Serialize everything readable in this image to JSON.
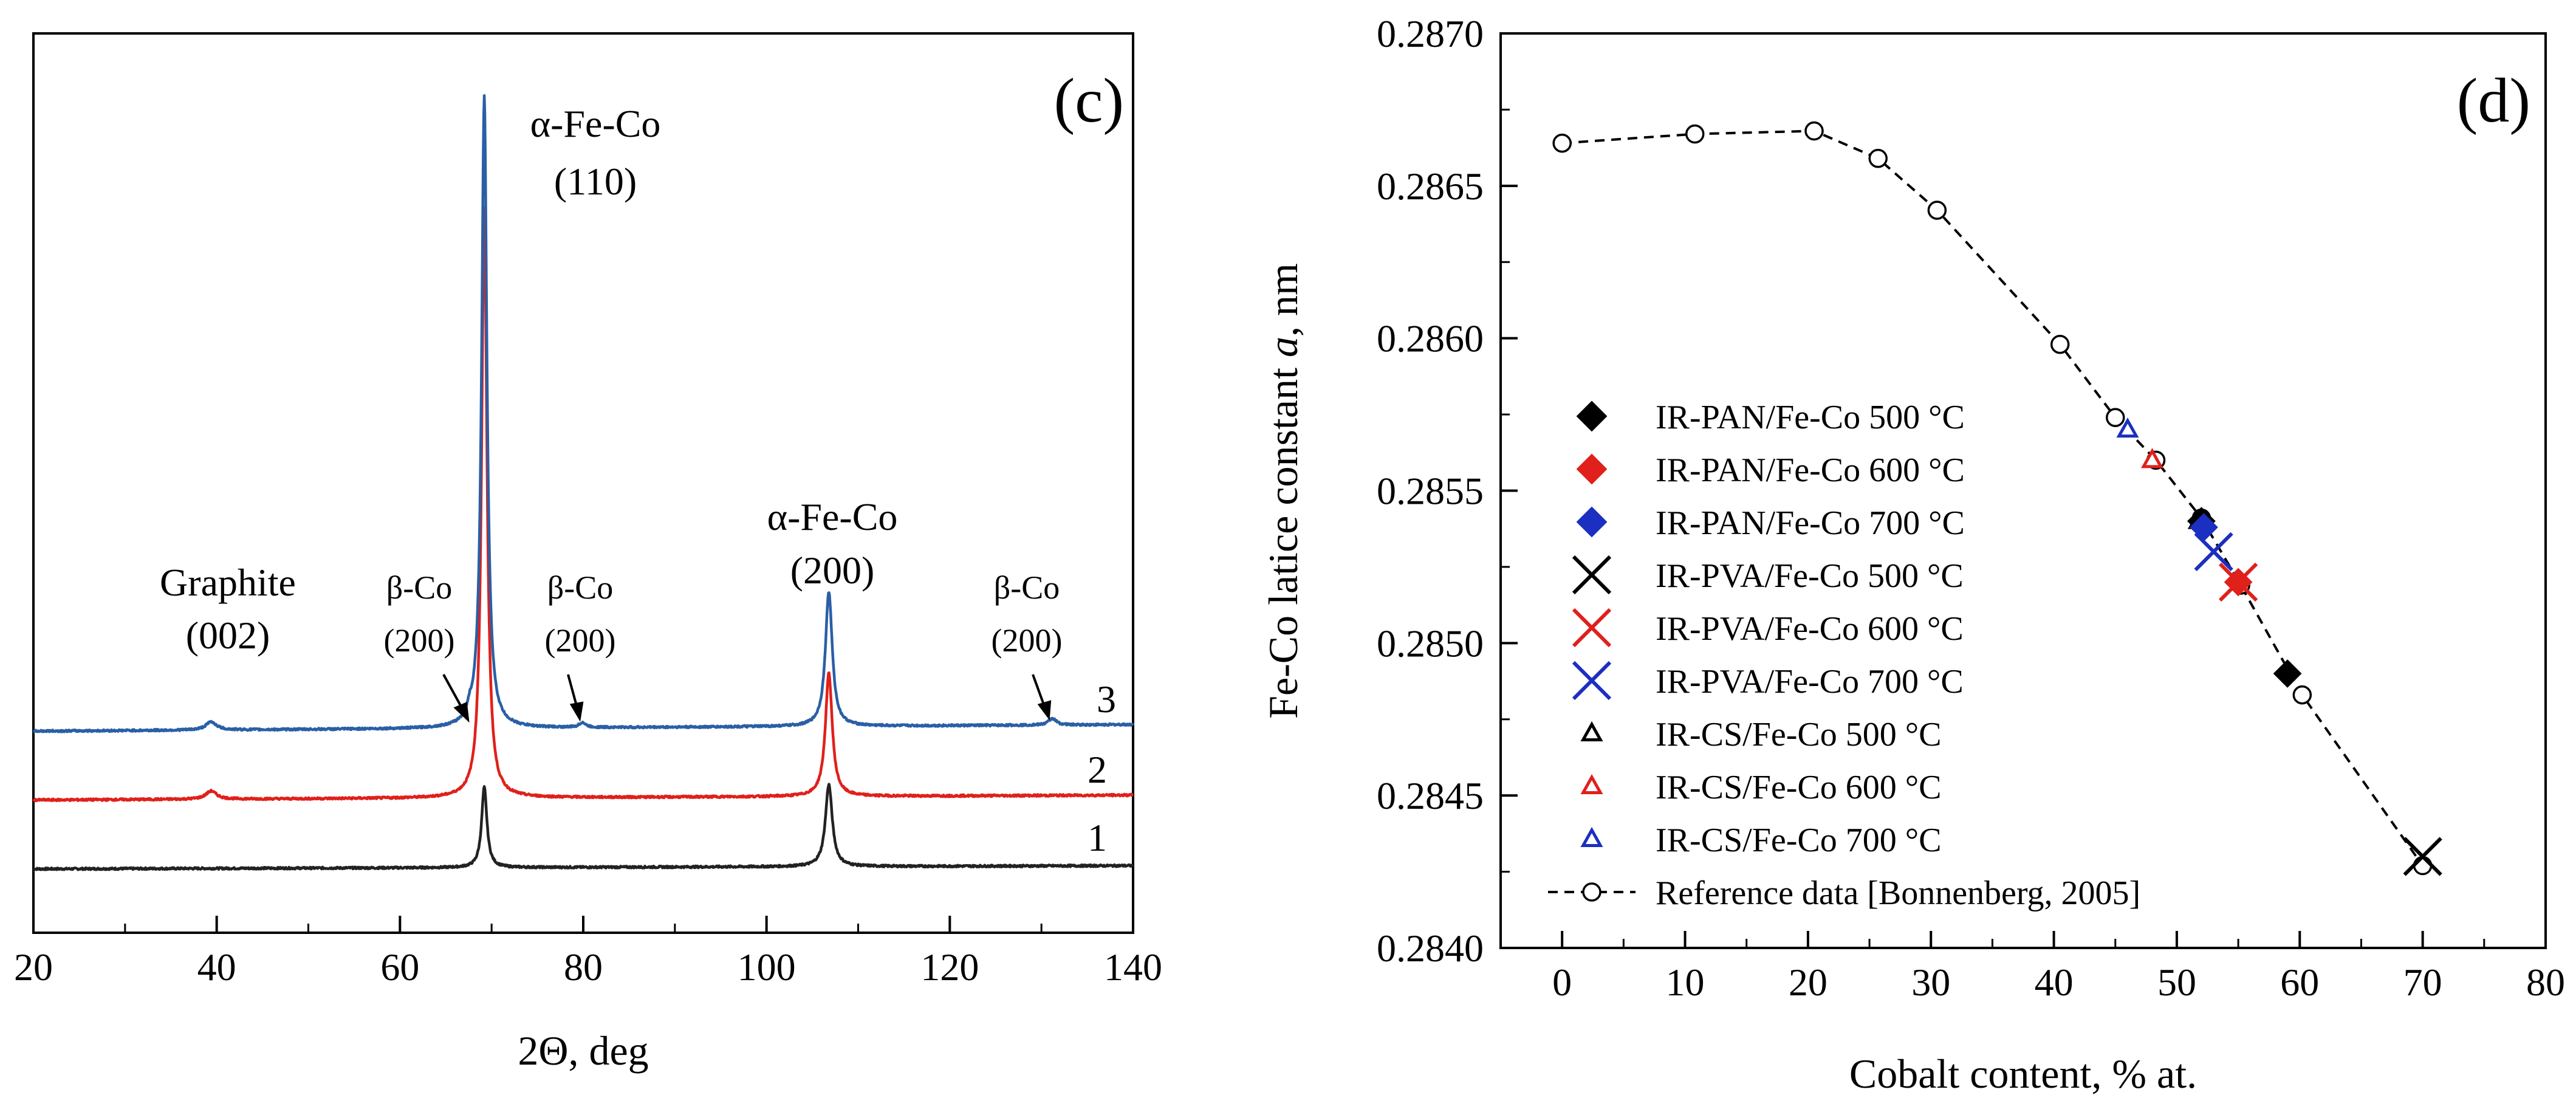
{
  "chart_data": [
    {
      "id": "c",
      "type": "line",
      "panel_label": "(c)",
      "title": "",
      "xlabel": "2Θ, deg",
      "ylabel": "",
      "xlim": [
        20,
        140
      ],
      "x_ticks": [
        20,
        40,
        60,
        80,
        100,
        120,
        140
      ],
      "y_units": "intensity (a.u., offset curves, no scale shown)",
      "series": [
        {
          "name": "1",
          "color": "#222222",
          "baseline": 0.0,
          "peaks": [
            {
              "x": 69.2,
              "height": 0.49,
              "width": 0.35
            },
            {
              "x": 106.8,
              "height": 0.5,
              "width": 0.45
            }
          ],
          "drift": 0.02
        },
        {
          "name": "2",
          "color": "#e0201b",
          "baseline": 0.42,
          "peaks": [
            {
              "x": 39.4,
              "height": 0.05,
              "width": 0.7
            },
            {
              "x": 69.2,
              "height": 3.6,
              "width": 0.35
            },
            {
              "x": 106.8,
              "height": 0.75,
              "width": 0.45
            }
          ],
          "drift": 0.03
        },
        {
          "name": "3",
          "color": "#2a5fa5",
          "baseline": 0.84,
          "peaks": [
            {
              "x": 39.4,
              "height": 0.05,
              "width": 0.7
            },
            {
              "x": 67.6,
              "height": 0.05,
              "width": 0.3
            },
            {
              "x": 69.2,
              "height": 3.85,
              "width": 0.35
            },
            {
              "x": 79.9,
              "height": 0.03,
              "width": 0.4
            },
            {
              "x": 106.8,
              "height": 0.82,
              "width": 0.45
            },
            {
              "x": 131.2,
              "height": 0.04,
              "width": 0.5
            }
          ],
          "drift": 0.04
        }
      ],
      "annotations": {
        "graphite": {
          "line1": "Graphite",
          "line2": "(002)"
        },
        "alpha_110": {
          "line1": "α-Fe-Co",
          "line2": "(110)"
        },
        "alpha_200": {
          "line1": "α-Fe-Co",
          "line2": "(200)"
        },
        "beta_co_1": {
          "line1": "β-Co",
          "line2": "(200)"
        },
        "beta_co_2": {
          "line1": "β-Co",
          "line2": "(200)"
        },
        "beta_co_3": {
          "line1": "β-Co",
          "line2": "(200)"
        }
      }
    },
    {
      "id": "d",
      "type": "scatter",
      "panel_label": "(d)",
      "title": "",
      "xlabel": "Cobalt content, % at.",
      "ylabel_prefix": "Fe-Co latice constant ",
      "ylabel_italic": "a",
      "ylabel_suffix": ", nm",
      "xlim": [
        -5,
        80
      ],
      "ylim": [
        0.284,
        0.287
      ],
      "x_ticks": [
        0,
        10,
        20,
        30,
        40,
        50,
        60,
        70,
        80
      ],
      "y_ticks": [
        "0.2840",
        "0.2845",
        "0.2850",
        "0.2855",
        "0.2860",
        "0.2865",
        "0.2870"
      ],
      "legend_position": "lower-left",
      "series": [
        {
          "name": "IR-PAN/Fe-Co 500 °C",
          "marker": "diamond",
          "color": "#000000",
          "points": [
            [
              52,
              0.2854
            ],
            [
              59,
              0.2849
            ]
          ]
        },
        {
          "name": "IR-PAN/Fe-Co 600 °C",
          "marker": "diamond",
          "color": "#e0201b",
          "points": [
            [
              55,
              0.2852
            ]
          ]
        },
        {
          "name": "IR-PAN/Fe-Co 700 °C",
          "marker": "diamond",
          "color": "#1b2fc0",
          "points": [
            [
              52.2,
              0.28538
            ]
          ]
        },
        {
          "name": "IR-PVA/Fe-Co 500 °C",
          "marker": "x",
          "color": "#000000",
          "points": [
            [
              70,
              0.2843
            ]
          ]
        },
        {
          "name": "IR-PVA/Fe-Co 600 °C",
          "marker": "x",
          "color": "#e0201b",
          "points": [
            [
              55,
              0.2852
            ]
          ]
        },
        {
          "name": "IR-PVA/Fe-Co 700 °C",
          "marker": "x",
          "color": "#1b2fc0",
          "points": [
            [
              53,
              0.2853
            ]
          ]
        },
        {
          "name": "IR-CS/Fe-Co 500 °C",
          "marker": "triangle",
          "color": "#000000",
          "points": [
            [
              51.8,
              0.2854
            ]
          ]
        },
        {
          "name": "IR-CS/Fe-Co 600 °C",
          "marker": "triangle",
          "color": "#e0201b",
          "points": [
            [
              48,
              0.2856
            ]
          ]
        },
        {
          "name": "IR-CS/Fe-Co 700 °C",
          "marker": "triangle",
          "color": "#1b2fc0",
          "points": [
            [
              46,
              0.2857
            ]
          ]
        },
        {
          "name": "Reference data [Bonnenberg, 2005]",
          "marker": "circle-open-dashed",
          "color": "#000000",
          "points": [
            [
              0,
              0.28664
            ],
            [
              10.8,
              0.28667
            ],
            [
              20.5,
              0.28668
            ],
            [
              25.7,
              0.28659
            ],
            [
              30.5,
              0.28642
            ],
            [
              40.5,
              0.28598
            ],
            [
              45,
              0.28574
            ],
            [
              48.3,
              0.2856
            ],
            [
              52,
              0.28541
            ],
            [
              55.2,
              0.28519
            ],
            [
              60.2,
              0.28483
            ],
            [
              70,
              0.28427
            ]
          ]
        }
      ]
    }
  ]
}
